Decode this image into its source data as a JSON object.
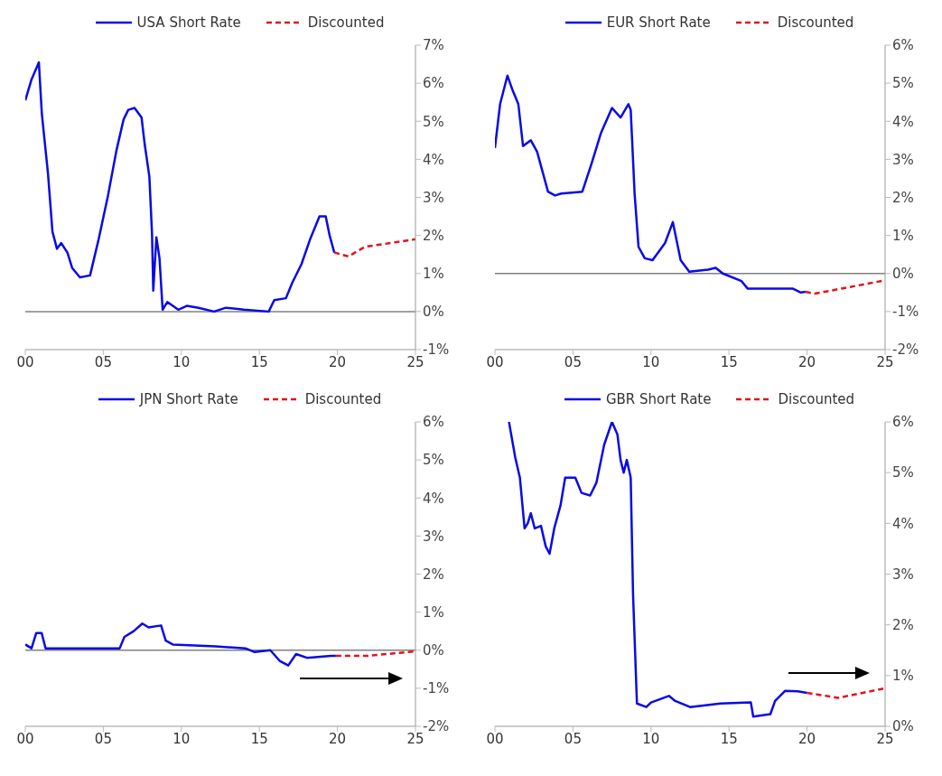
{
  "chart_data": [
    {
      "type": "line",
      "legend": "top",
      "xlim": [
        2000,
        2025
      ],
      "xticks": [
        {
          "value": 2000,
          "label": "00"
        },
        {
          "value": 2005,
          "label": "05"
        },
        {
          "value": 2010,
          "label": "10"
        },
        {
          "value": 2015,
          "label": "15"
        },
        {
          "value": 2020,
          "label": "20"
        },
        {
          "value": 2025,
          "label": "25"
        }
      ],
      "ylim": [
        -1,
        7
      ],
      "yticks": [
        {
          "value": -1,
          "label": "-1%"
        },
        {
          "value": 0,
          "label": "0%"
        },
        {
          "value": 1,
          "label": "1%"
        },
        {
          "value": 2,
          "label": "2%"
        },
        {
          "value": 3,
          "label": "3%"
        },
        {
          "value": 4,
          "label": "4%"
        },
        {
          "value": 5,
          "label": "5%"
        },
        {
          "value": 6,
          "label": "6%"
        },
        {
          "value": 7,
          "label": "7%"
        }
      ],
      "ref_lines": [
        {
          "axis": "y",
          "value": 0,
          "color": "#808080"
        }
      ],
      "series": [
        {
          "name": "USA Short Rate",
          "color": "#0a0ae6",
          "line_style": "solid",
          "x": [
            2000,
            2000.4,
            2000.87,
            2001.06,
            2001.45,
            2001.74,
            2002.03,
            2002.3,
            2002.7,
            2003,
            2003.5,
            2004.15,
            2004.7,
            2005.3,
            2005.85,
            2006.3,
            2006.6,
            2007,
            2007.45,
            2007.65,
            2007.95,
            2008.12,
            2008.2,
            2008.4,
            2008.6,
            2008.8,
            2009.1,
            2009.8,
            2010.35,
            2011.1,
            2012.1,
            2012.85,
            2014,
            2015.6,
            2015.95,
            2016.7,
            2017.1,
            2017.7,
            2018.25,
            2018.85,
            2019.25,
            2019.5,
            2019.8
          ],
          "values": [
            5.55,
            6.1,
            6.55,
            5.2,
            3.65,
            2.1,
            1.65,
            1.8,
            1.55,
            1.15,
            0.9,
            0.95,
            1.9,
            3.05,
            4.25,
            5.05,
            5.3,
            5.35,
            5.1,
            4.4,
            3.55,
            2.05,
            0.55,
            1.95,
            1.4,
            0.05,
            0.25,
            0.05,
            0.15,
            0.1,
            0,
            0.1,
            0.05,
            0,
            0.3,
            0.35,
            0.75,
            1.25,
            1.9,
            2.5,
            2.5,
            2,
            1.55
          ]
        },
        {
          "name": "Discounted",
          "color": "#e0141e",
          "line_style": "dashed",
          "x": [
            2019.8,
            2020.7,
            2021.75,
            2025
          ],
          "values": [
            1.55,
            1.45,
            1.7,
            1.9
          ]
        }
      ]
    },
    {
      "type": "line",
      "legend": "top",
      "xlim": [
        2000,
        2025
      ],
      "xticks": [
        {
          "value": 2000,
          "label": "00"
        },
        {
          "value": 2005,
          "label": "05"
        },
        {
          "value": 2010,
          "label": "10"
        },
        {
          "value": 2015,
          "label": "15"
        },
        {
          "value": 2020,
          "label": "20"
        },
        {
          "value": 2025,
          "label": "25"
        }
      ],
      "ylim": [
        -2,
        6
      ],
      "yticks": [
        {
          "value": -2,
          "label": "-2%"
        },
        {
          "value": -1,
          "label": "-1%"
        },
        {
          "value": 0,
          "label": "0%"
        },
        {
          "value": 1,
          "label": "1%"
        },
        {
          "value": 2,
          "label": "2%"
        },
        {
          "value": 3,
          "label": "3%"
        },
        {
          "value": 4,
          "label": "4%"
        },
        {
          "value": 5,
          "label": "5%"
        },
        {
          "value": 6,
          "label": "6%"
        }
      ],
      "ref_lines": [
        {
          "axis": "y",
          "value": 0,
          "color": "#808080"
        }
      ],
      "series": [
        {
          "name": "EUR Short Rate",
          "color": "#0a0ae6",
          "line_style": "solid",
          "x": [
            2000,
            2000.33,
            2000.8,
            2001.1,
            2001.5,
            2001.8,
            2002.3,
            2002.7,
            2003.4,
            2003.85,
            2004.25,
            2005.6,
            2006.2,
            2006.8,
            2007.5,
            2008.05,
            2008.55,
            2008.7,
            2008.95,
            2009.2,
            2009.6,
            2010.1,
            2010.9,
            2011.4,
            2011.9,
            2012.45,
            2013.65,
            2014.15,
            2014.6,
            2015.8,
            2016.2,
            2019.1,
            2019.6,
            2019.9
          ],
          "values": [
            3.3,
            4.45,
            5.2,
            4.85,
            4.45,
            3.35,
            3.5,
            3.2,
            2.15,
            2.05,
            2.1,
            2.15,
            2.9,
            3.7,
            4.35,
            4.1,
            4.45,
            4.3,
            2.1,
            0.7,
            0.4,
            0.35,
            0.8,
            1.35,
            0.35,
            0.05,
            0.1,
            0.15,
            0,
            -0.2,
            -0.4,
            -0.4,
            -0.5,
            -0.48
          ]
        },
        {
          "name": "Discounted",
          "color": "#e0141e",
          "line_style": "dashed",
          "x": [
            2019.9,
            2020.5,
            2025
          ],
          "values": [
            -0.48,
            -0.53,
            -0.18
          ]
        }
      ]
    },
    {
      "type": "line",
      "legend": "top",
      "xlim": [
        2000,
        2025
      ],
      "xticks": [
        {
          "value": 2000,
          "label": "00"
        },
        {
          "value": 2005,
          "label": "05"
        },
        {
          "value": 2010,
          "label": "10"
        },
        {
          "value": 2015,
          "label": "15"
        },
        {
          "value": 2020,
          "label": "20"
        },
        {
          "value": 2025,
          "label": "25"
        }
      ],
      "ylim": [
        -2,
        6
      ],
      "yticks": [
        {
          "value": -2,
          "label": "-2%"
        },
        {
          "value": -1,
          "label": "-1%"
        },
        {
          "value": 0,
          "label": "0%"
        },
        {
          "value": 1,
          "label": "1%"
        },
        {
          "value": 2,
          "label": "2%"
        },
        {
          "value": 3,
          "label": "3%"
        },
        {
          "value": 4,
          "label": "4%"
        },
        {
          "value": 5,
          "label": "5%"
        },
        {
          "value": 6,
          "label": "6%"
        }
      ],
      "ref_lines": [
        {
          "axis": "y",
          "value": 0,
          "color": "#808080"
        }
      ],
      "series": [
        {
          "name": "JPN Short Rate",
          "color": "#0a0ae6",
          "line_style": "solid",
          "x": [
            2000,
            2000.4,
            2000.7,
            2001.05,
            2001.3,
            2006.05,
            2006.35,
            2006.95,
            2007.5,
            2007.9,
            2008.7,
            2009,
            2009.45,
            2012.2,
            2014.1,
            2014.7,
            2015.7,
            2016.3,
            2016.85,
            2017.35,
            2018.05,
            2019.6,
            2019.9
          ],
          "values": [
            0.15,
            0.05,
            0.45,
            0.45,
            0.05,
            0.05,
            0.35,
            0.5,
            0.7,
            0.6,
            0.65,
            0.25,
            0.15,
            0.1,
            0.05,
            -0.05,
            0,
            -0.28,
            -0.4,
            -0.1,
            -0.2,
            -0.15,
            -0.15
          ]
        },
        {
          "name": "Discounted",
          "color": "#e0141e",
          "line_style": "dashed",
          "x": [
            2019.9,
            2021.9,
            2025
          ],
          "values": [
            -0.15,
            -0.15,
            -0.03
          ]
        }
      ]
    },
    {
      "type": "line",
      "legend": "top",
      "xlim": [
        2000,
        2025
      ],
      "xticks": [
        {
          "value": 2000,
          "label": "00"
        },
        {
          "value": 2005,
          "label": "05"
        },
        {
          "value": 2010,
          "label": "10"
        },
        {
          "value": 2015,
          "label": "15"
        },
        {
          "value": 2020,
          "label": "20"
        },
        {
          "value": 2025,
          "label": "25"
        }
      ],
      "ylim": [
        0,
        6
      ],
      "yticks": [
        {
          "value": 0,
          "label": "0%"
        },
        {
          "value": 1,
          "label": "1%"
        },
        {
          "value": 2,
          "label": "2%"
        },
        {
          "value": 3,
          "label": "3%"
        },
        {
          "value": 4,
          "label": "4%"
        },
        {
          "value": 5,
          "label": "5%"
        },
        {
          "value": 6,
          "label": "6%"
        }
      ],
      "series": [
        {
          "name": "GBR Short Rate",
          "color": "#0a0ae6",
          "line_style": "solid",
          "x": [
            2000.9,
            2001.3,
            2001.6,
            2001.9,
            2002.1,
            2002.3,
            2002.55,
            2002.95,
            2003.25,
            2003.5,
            2003.8,
            2004.2,
            2004.5,
            2005.15,
            2005.55,
            2006.1,
            2006.5,
            2007,
            2007.5,
            2007.85,
            2008.05,
            2008.25,
            2008.45,
            2008.7,
            2008.85,
            2009.1,
            2009.7,
            2010,
            2011.15,
            2011.55,
            2012.5,
            2014.45,
            2016.4,
            2016.55,
            2017.65,
            2017.95,
            2018.6,
            2019.4,
            2020
          ],
          "values": [
            6,
            5.3,
            4.9,
            3.9,
            4,
            4.2,
            3.9,
            3.95,
            3.55,
            3.4,
            3.9,
            4.35,
            4.9,
            4.9,
            4.6,
            4.55,
            4.8,
            5.55,
            6,
            5.75,
            5.25,
            5,
            5.25,
            4.9,
            2.6,
            0.45,
            0.38,
            0.47,
            0.6,
            0.5,
            0.38,
            0.45,
            0.47,
            0.19,
            0.24,
            0.5,
            0.7,
            0.69,
            0.66
          ]
        },
        {
          "name": "Discounted",
          "color": "#e0141e",
          "line_style": "dashed",
          "x": [
            2020,
            2022,
            2025
          ],
          "values": [
            0.66,
            0.56,
            0.75
          ]
        }
      ]
    }
  ]
}
